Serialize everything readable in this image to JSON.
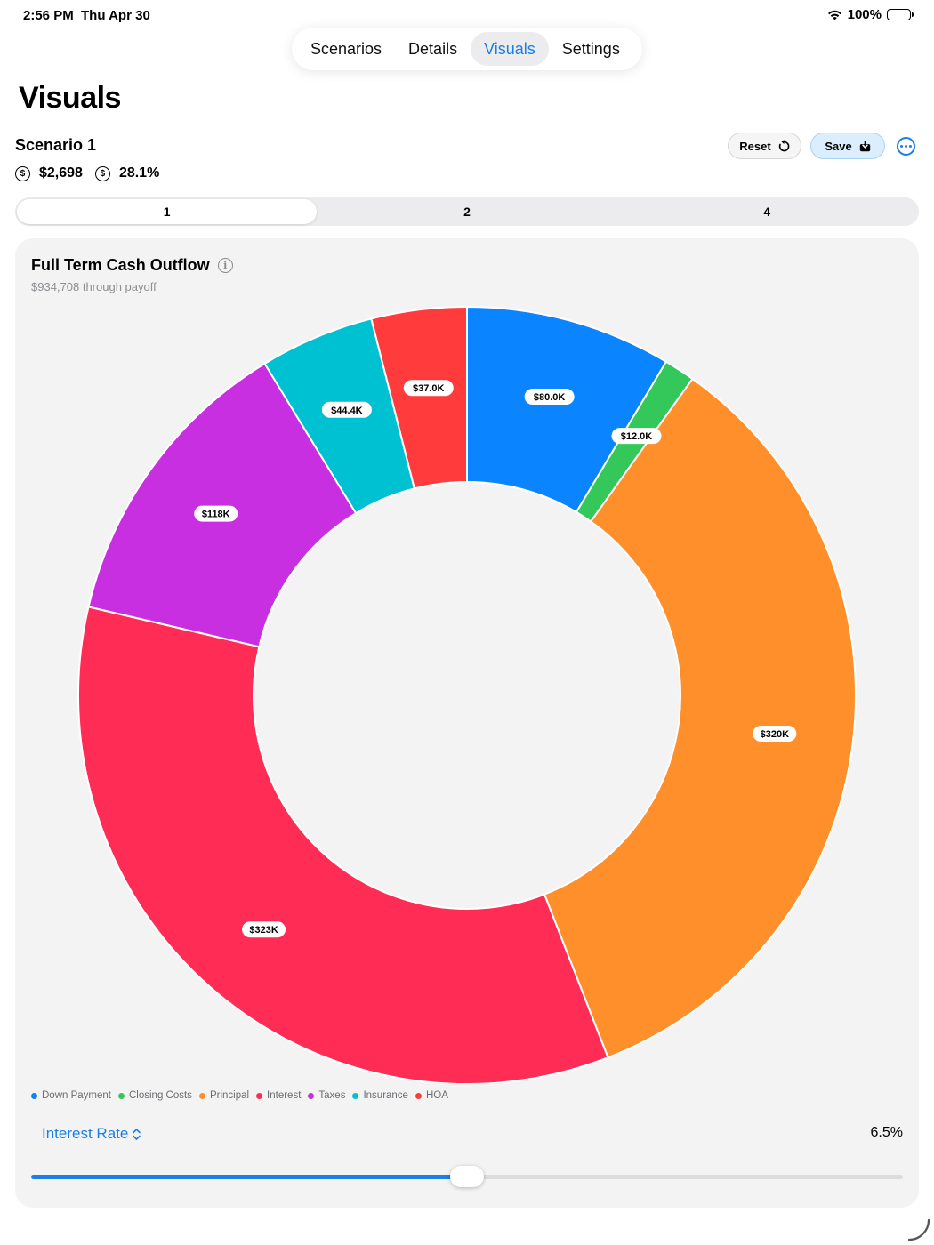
{
  "status_bar": {
    "time": "2:56 PM",
    "date": "Thu Apr 30",
    "battery": "100%"
  },
  "tabs": [
    {
      "label": "Scenarios",
      "active": false
    },
    {
      "label": "Details",
      "active": false
    },
    {
      "label": "Visuals",
      "active": true
    },
    {
      "label": "Settings",
      "active": false
    }
  ],
  "page_title": "Visuals",
  "scenario": {
    "name": "Scenario 1",
    "monthly_payment": "$2,698",
    "rate_stat": "28.1%",
    "reset_label": "Reset",
    "save_label": "Save"
  },
  "segments": [
    {
      "label": "1",
      "active": true
    },
    {
      "label": "2",
      "active": false
    },
    {
      "label": "4",
      "active": false
    }
  ],
  "card": {
    "title": "Full Term Cash Outflow",
    "subtitle": "$934,708 through payoff"
  },
  "chart_data": {
    "type": "pie",
    "title": "Full Term Cash Outflow",
    "subtitle": "$934,708 through payoff",
    "total": 934708,
    "categories": [
      "Down Payment",
      "Closing Costs",
      "Principal",
      "Interest",
      "Taxes",
      "Insurance",
      "HOA"
    ],
    "values": [
      80000,
      12000,
      320000,
      323000,
      118000,
      44400,
      37000
    ],
    "data_labels": [
      "$80.0K",
      "$12.0K",
      "$320K",
      "$323K",
      "$118K",
      "$44.4K",
      "$37.0K"
    ],
    "colors": [
      "#0a84ff",
      "#34c759",
      "#ff8f2a",
      "#ff2d55",
      "#c82fe0",
      "#00c1d1",
      "#ff3b3b"
    ],
    "legend_position": "bottom-left"
  },
  "controls": {
    "interest_rate_label": "Interest Rate",
    "interest_rate_value": "6.5%",
    "slider_fraction": 0.5
  }
}
